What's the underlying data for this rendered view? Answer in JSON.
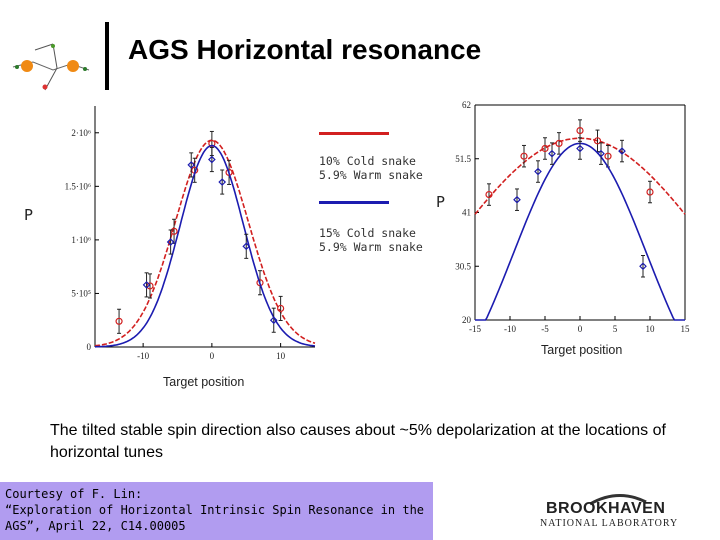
{
  "slide": {
    "title": "AGS Horizontal resonance",
    "legend": {
      "red_label_line1": "10% Cold snake",
      "red_label_line2": "5.9% Warm snake",
      "blue_label_line1": "15% Cold snake",
      "blue_label_line2": "5.9% Warm snake"
    },
    "side_labels": {
      "left": "P",
      "right": "P"
    },
    "left_axis_caption": "Target position",
    "right_axis_caption": "Target position",
    "note": "The tilted stable spin direction also causes about ~5% depolarization at the locations of horizontal tunes",
    "credit": {
      "line1": "Courtesy of F. Lin:",
      "line2": "“Exploration of Horizontal Intrinsic Spin Resonance in the",
      "line3": "AGS”, April 22, C14.00005"
    },
    "logo": {
      "name": "BROOKHAVEN",
      "sub": "NATIONAL LABORATORY"
    },
    "colors": {
      "red": "#d22020",
      "blue": "#1c1cb0",
      "credit_bg": "#b19cf0"
    }
  },
  "chart_data": [
    {
      "type": "scatter",
      "title": "",
      "xlabel": "Target position",
      "ylabel": "P",
      "xlim": [
        -17,
        15
      ],
      "ylim": [
        0,
        2250000
      ],
      "ytick_labels": [
        "0",
        "5·10⁵",
        "1·10⁶",
        "1.5·10⁶",
        "2·10⁶"
      ],
      "ytick_values": [
        0,
        500000,
        1000000,
        1500000,
        2000000
      ],
      "xtick_labels": [
        "-10",
        "0",
        "10"
      ],
      "xtick_values": [
        -10,
        0,
        10
      ],
      "series": [
        {
          "name": "10% Cold snake, 5.9% Warm snake",
          "color": "red",
          "marker": "circle",
          "x": [
            -13.5,
            -9,
            -5.5,
            -2.5,
            0,
            2.5,
            7,
            10
          ],
          "y": [
            240000,
            570000,
            1080000,
            1650000,
            1900000,
            1630000,
            600000,
            360000
          ],
          "curve_peak": 1930000,
          "curve_center": 0,
          "curve_sigma": 5.3
        },
        {
          "name": "15% Cold snake, 5.9% Warm snake",
          "color": "blue",
          "marker": "diamond",
          "x": [
            -9.5,
            -6,
            -3,
            0,
            1.5,
            5,
            9
          ],
          "y": [
            580000,
            980000,
            1700000,
            1750000,
            1540000,
            940000,
            250000
          ],
          "curve_peak": 1880000,
          "curve_center": 0,
          "curve_sigma": 4.6
        }
      ]
    },
    {
      "type": "scatter",
      "title": "",
      "xlabel": "Target position",
      "ylabel": "P",
      "xlim": [
        -15,
        15
      ],
      "ylim": [
        20,
        62
      ],
      "ytick_labels": [
        "20",
        "30.5",
        "41",
        "51.5",
        "62"
      ],
      "ytick_values": [
        20,
        30.5,
        41,
        51.5,
        62
      ],
      "xtick_labels": [
        "-15",
        "-10",
        "-5",
        "0",
        "5",
        "10",
        "15"
      ],
      "xtick_values": [
        -15,
        -10,
        -5,
        0,
        5,
        10,
        15
      ],
      "series": [
        {
          "name": "10% Cold snake, 5.9% Warm snake",
          "color": "red",
          "marker": "circle",
          "x": [
            -13,
            -8,
            -5,
            -3,
            0,
            2.5,
            4,
            10
          ],
          "y": [
            44.5,
            52,
            53.5,
            54.5,
            57,
            55,
            52,
            45
          ],
          "curve_peak": 55.5,
          "curve_center": 0,
          "curve_sigma": 19
        },
        {
          "name": "15% Cold snake, 5.9% Warm snake",
          "color": "blue",
          "marker": "diamond",
          "x": [
            -9,
            -6,
            -4,
            0,
            3,
            6,
            9
          ],
          "y": [
            43.5,
            49,
            52.5,
            53.5,
            52.5,
            53,
            30.5
          ],
          "curve_peak": 54.5,
          "curve_center": 0,
          "curve_sigma": 9.5
        }
      ]
    }
  ]
}
